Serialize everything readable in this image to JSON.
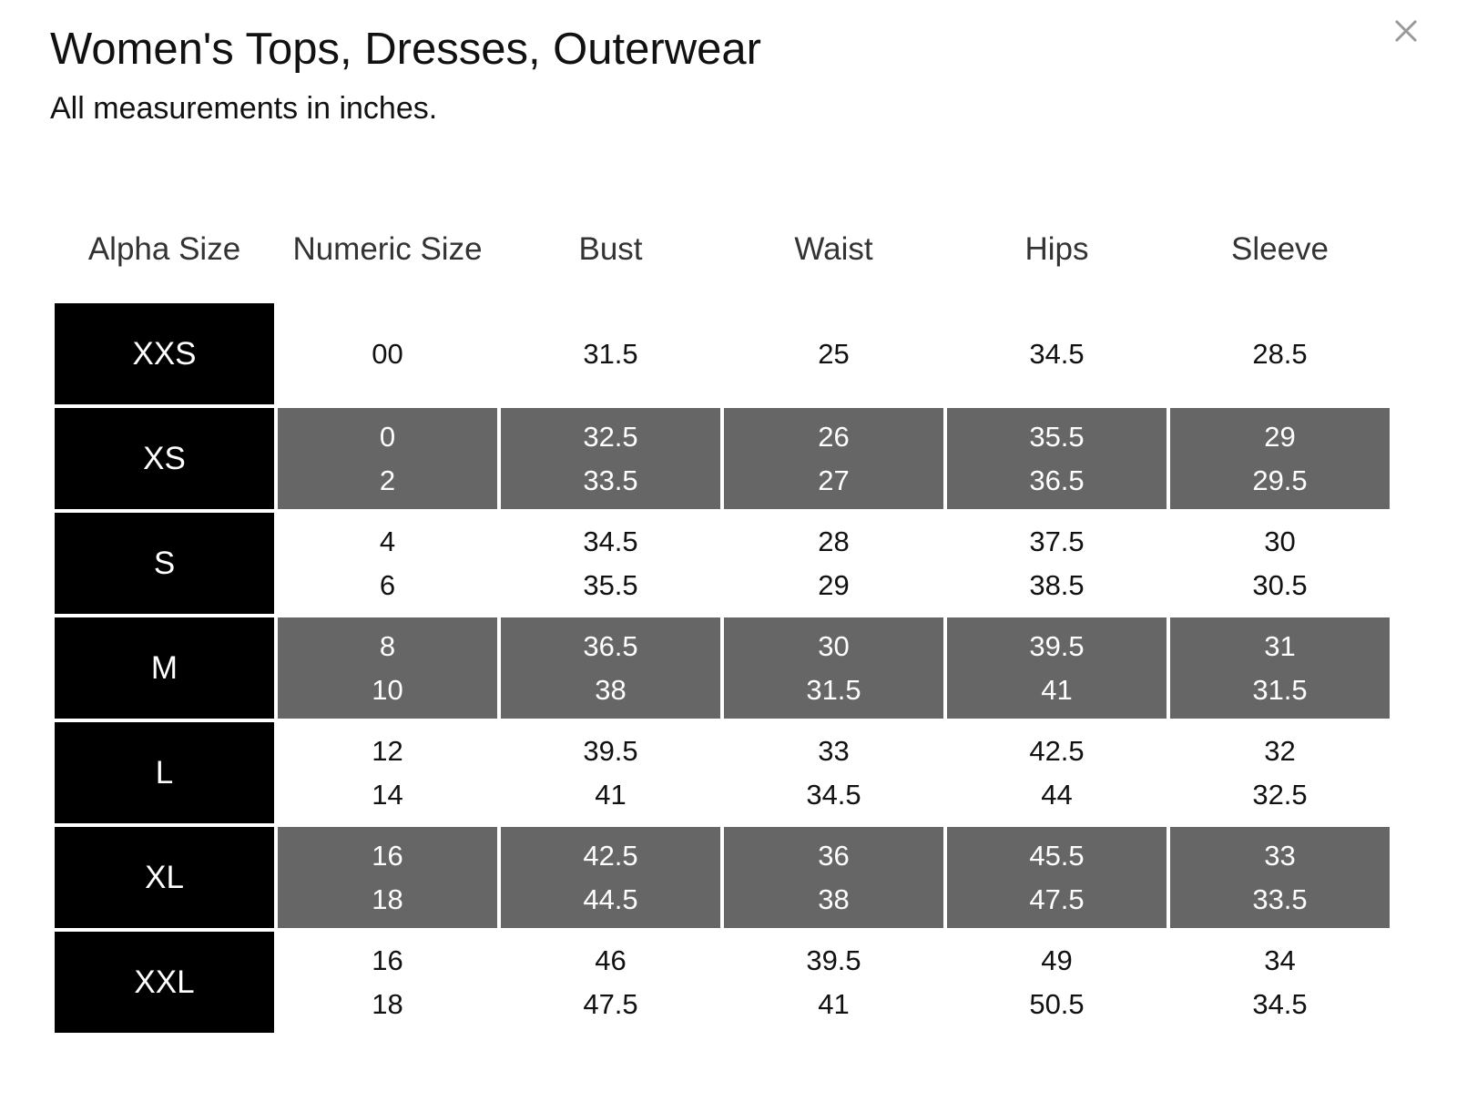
{
  "header": {
    "title": "Women's Tops, Dresses, Outerwear",
    "subtitle": "All measurements in inches."
  },
  "table": {
    "columns": [
      "Alpha Size",
      "Numeric Size",
      "Bust",
      "Waist",
      "Hips",
      "Sleeve"
    ],
    "rows": [
      {
        "size": "XXS",
        "cells": [
          [
            "00"
          ],
          [
            "31.5"
          ],
          [
            "25"
          ],
          [
            "34.5"
          ],
          [
            "28.5"
          ]
        ]
      },
      {
        "size": "XS",
        "cells": [
          [
            "0",
            "2"
          ],
          [
            "32.5",
            "33.5"
          ],
          [
            "26",
            "27"
          ],
          [
            "35.5",
            "36.5"
          ],
          [
            "29",
            "29.5"
          ]
        ]
      },
      {
        "size": "S",
        "cells": [
          [
            "4",
            "6"
          ],
          [
            "34.5",
            "35.5"
          ],
          [
            "28",
            "29"
          ],
          [
            "37.5",
            "38.5"
          ],
          [
            "30",
            "30.5"
          ]
        ]
      },
      {
        "size": "M",
        "cells": [
          [
            "8",
            "10"
          ],
          [
            "36.5",
            "38"
          ],
          [
            "30",
            "31.5"
          ],
          [
            "39.5",
            "41"
          ],
          [
            "31",
            "31.5"
          ]
        ]
      },
      {
        "size": "L",
        "cells": [
          [
            "12",
            "14"
          ],
          [
            "39.5",
            "41"
          ],
          [
            "33",
            "34.5"
          ],
          [
            "42.5",
            "44"
          ],
          [
            "32",
            "32.5"
          ]
        ]
      },
      {
        "size": "XL",
        "cells": [
          [
            "16",
            "18"
          ],
          [
            "42.5",
            "44.5"
          ],
          [
            "36",
            "38"
          ],
          [
            "45.5",
            "47.5"
          ],
          [
            "33",
            "33.5"
          ]
        ]
      },
      {
        "size": "XXL",
        "cells": [
          [
            "16",
            "18"
          ],
          [
            "46",
            "47.5"
          ],
          [
            "39.5",
            "41"
          ],
          [
            "49",
            "50.5"
          ],
          [
            "34",
            "34.5"
          ]
        ]
      }
    ]
  }
}
